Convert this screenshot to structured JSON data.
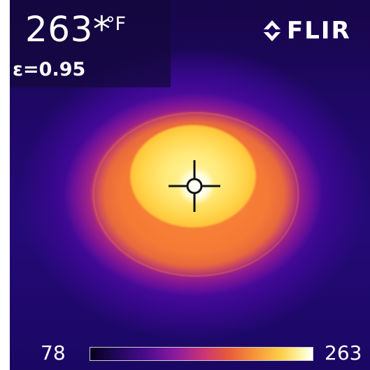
{
  "readout": {
    "temperature": "263*",
    "unit": "°F",
    "emissivity": "ε=0.95"
  },
  "brand": {
    "logo_text": "FLIR",
    "icon": "flir-diamond-icon"
  },
  "scale": {
    "min": "78",
    "max": "263"
  },
  "spot_meter": {
    "icon": "crosshair-icon"
  },
  "colors": {
    "text": "#ffffff",
    "background": "#1e0866",
    "hot": "#fff7a3",
    "warm": "#f88a38",
    "mid": "#c7327a"
  }
}
